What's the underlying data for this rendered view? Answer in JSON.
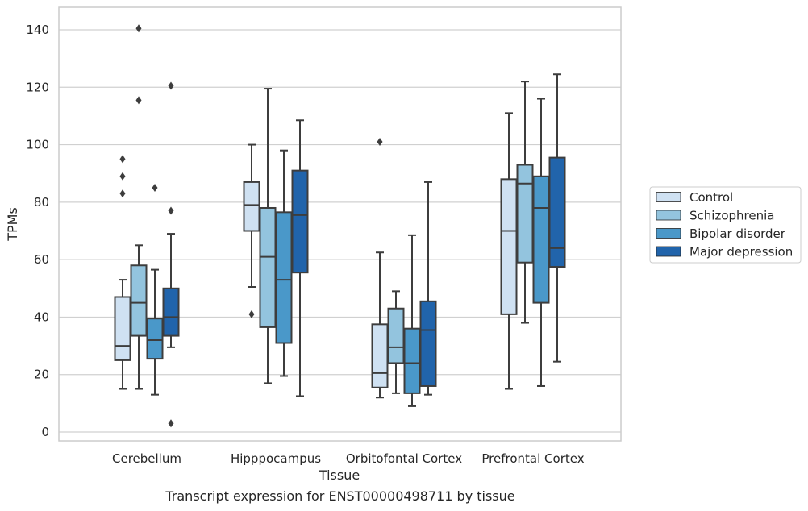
{
  "caption": "Transcript expression for ENST00000498711 by tissue",
  "colors": {
    "Control": "#cfe1f2",
    "Schizophrenia": "#93c4de",
    "Bipolar disorder": "#4a98c9",
    "Major depression": "#2164ab",
    "edge": "#3d3d3d",
    "grid": "#d0d0d0",
    "frame": "#cccccc"
  },
  "chart_data": {
    "type": "box",
    "xlabel": "Tissue",
    "ylabel": "TPMs",
    "ylim": [
      -3.5,
      148
    ],
    "yticks": [
      0,
      20,
      40,
      60,
      80,
      100,
      120,
      140
    ],
    "grid": true,
    "legend_position": "right",
    "categories": [
      "Cerebellum",
      "Hipppocampus",
      "Orbitofontal Cortex",
      "Prefrontal Cortex"
    ],
    "series": [
      {
        "name": "Control",
        "boxes": [
          {
            "whislo": 15,
            "q1": 25,
            "med": 30,
            "q3": 47,
            "whishi": 53,
            "fliers": [
              83,
              89,
              95
            ]
          },
          {
            "whislo": 50.5,
            "q1": 70,
            "med": 79,
            "q3": 87,
            "whishi": 100,
            "fliers": [
              41
            ]
          },
          {
            "whislo": 12,
            "q1": 15.5,
            "med": 20.5,
            "q3": 37.5,
            "whishi": 62.5,
            "fliers": [
              101
            ]
          },
          {
            "whislo": 15,
            "q1": 41,
            "med": 70,
            "q3": 88,
            "whishi": 111,
            "fliers": []
          }
        ]
      },
      {
        "name": "Schizophrenia",
        "boxes": [
          {
            "whislo": 15,
            "q1": 33.5,
            "med": 45,
            "q3": 58,
            "whishi": 65,
            "fliers": [
              115.5,
              140.5
            ]
          },
          {
            "whislo": 17,
            "q1": 36.5,
            "med": 61,
            "q3": 78,
            "whishi": 119.5,
            "fliers": []
          },
          {
            "whislo": 13.5,
            "q1": 24,
            "med": 29.5,
            "q3": 43,
            "whishi": 49,
            "fliers": []
          },
          {
            "whislo": 38,
            "q1": 59,
            "med": 86.5,
            "q3": 93,
            "whishi": 122,
            "fliers": []
          }
        ]
      },
      {
        "name": "Bipolar disorder",
        "boxes": [
          {
            "whislo": 13,
            "q1": 25.5,
            "med": 32,
            "q3": 39.5,
            "whishi": 56.5,
            "fliers": [
              85
            ]
          },
          {
            "whislo": 19.5,
            "q1": 31,
            "med": 53,
            "q3": 76.5,
            "whishi": 98,
            "fliers": []
          },
          {
            "whislo": 9,
            "q1": 13.5,
            "med": 24,
            "q3": 36,
            "whishi": 68.5,
            "fliers": []
          },
          {
            "whislo": 16,
            "q1": 45,
            "med": 78,
            "q3": 89,
            "whishi": 116,
            "fliers": []
          }
        ]
      },
      {
        "name": "Major depression",
        "boxes": [
          {
            "whislo": 29.5,
            "q1": 33.5,
            "med": 40,
            "q3": 50,
            "whishi": 69,
            "fliers": [
              3,
              77,
              120.5
            ]
          },
          {
            "whislo": 12.5,
            "q1": 55.5,
            "med": 75.5,
            "q3": 91,
            "whishi": 108.5,
            "fliers": []
          },
          {
            "whislo": 13,
            "q1": 16,
            "med": 35.5,
            "q3": 45.5,
            "whishi": 87,
            "fliers": []
          },
          {
            "whislo": 24.5,
            "q1": 57.5,
            "med": 64,
            "q3": 95.5,
            "whishi": 124.5,
            "fliers": []
          }
        ]
      }
    ]
  }
}
